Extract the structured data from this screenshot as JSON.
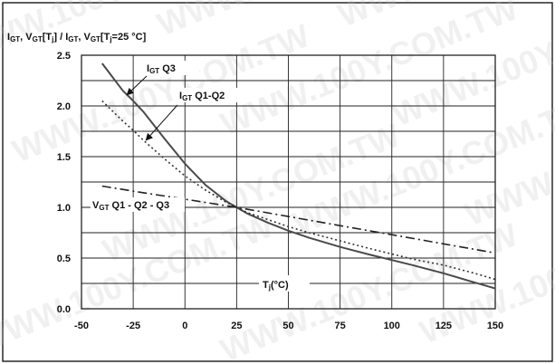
{
  "chart_data": {
    "type": "line",
    "title": "",
    "ylabel_parts": [
      "I",
      "GT",
      ", V",
      "GT",
      "[T",
      "j",
      "] / I",
      "GT",
      ", V",
      "GT",
      "[T",
      "j",
      "=25 °C]"
    ],
    "xlabel_parts": [
      "T",
      "j",
      "(°C)"
    ],
    "xlim": [
      -50,
      150
    ],
    "ylim": [
      0.0,
      2.5
    ],
    "xticks": [
      "-50",
      "-25",
      "0",
      "25",
      "50",
      "75",
      "100",
      "125",
      "150"
    ],
    "yticks": [
      "0.0",
      "0.5",
      "1.0",
      "1.5",
      "2.0",
      "2.5"
    ],
    "grid": true,
    "series": [
      {
        "name": "IGT Q3",
        "label_parts": [
          "I",
          "GT",
          " Q3"
        ],
        "style": "solid",
        "color": "#4a4a4a",
        "x": [
          -40,
          -30,
          -25,
          -20,
          -10,
          0,
          10,
          20,
          25,
          30,
          40,
          50,
          60,
          75,
          90,
          100,
          110,
          125,
          140,
          150
        ],
        "y": [
          2.42,
          2.15,
          2.05,
          1.94,
          1.68,
          1.43,
          1.22,
          1.06,
          1.0,
          0.94,
          0.85,
          0.77,
          0.7,
          0.61,
          0.53,
          0.48,
          0.43,
          0.35,
          0.26,
          0.2
        ]
      },
      {
        "name": "IGT Q1-Q2",
        "label_parts": [
          "I",
          "GT",
          " Q1-Q2"
        ],
        "style": "dotted",
        "color": "#333333",
        "x": [
          -40,
          -30,
          -25,
          -20,
          -10,
          0,
          10,
          20,
          25,
          30,
          40,
          50,
          60,
          75,
          90,
          100,
          110,
          125,
          140,
          150
        ],
        "y": [
          2.05,
          1.85,
          1.76,
          1.66,
          1.48,
          1.31,
          1.17,
          1.05,
          1.0,
          0.95,
          0.88,
          0.81,
          0.75,
          0.67,
          0.59,
          0.54,
          0.49,
          0.43,
          0.35,
          0.29
        ]
      },
      {
        "name": "VGT Q1-Q2-Q3",
        "label_parts": [
          "V",
          "GT",
          " Q1 - Q2 - Q3"
        ],
        "style": "dashdot",
        "color": "#222222",
        "x": [
          -40,
          -25,
          0,
          25,
          50,
          75,
          100,
          125,
          150
        ],
        "y": [
          1.21,
          1.16,
          1.08,
          1.0,
          0.91,
          0.82,
          0.73,
          0.64,
          0.55
        ]
      }
    ]
  },
  "watermark": {
    "text": "WWW.100Y.COM.TW",
    "color": "#bfbfbf"
  }
}
